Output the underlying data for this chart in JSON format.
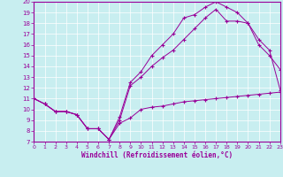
{
  "xlabel": "Windchill (Refroidissement éolien,°C)",
  "background_color": "#c8eef0",
  "line_color": "#990099",
  "grid_color": "#ffffff",
  "xlim": [
    0,
    23
  ],
  "ylim": [
    7,
    20
  ],
  "xticks": [
    0,
    1,
    2,
    3,
    4,
    5,
    6,
    7,
    8,
    9,
    10,
    11,
    12,
    13,
    14,
    15,
    16,
    17,
    18,
    19,
    20,
    21,
    22,
    23
  ],
  "yticks": [
    7,
    8,
    9,
    10,
    11,
    12,
    13,
    14,
    15,
    16,
    17,
    18,
    19,
    20
  ],
  "line1_x": [
    0,
    1,
    2,
    3,
    4,
    5,
    6,
    7,
    8,
    9,
    10,
    11,
    12,
    13,
    14,
    15,
    16,
    17,
    18,
    19,
    20,
    21,
    22,
    23
  ],
  "line1_y": [
    11.0,
    10.5,
    9.8,
    9.8,
    9.5,
    8.2,
    8.2,
    7.2,
    8.7,
    9.2,
    10.0,
    10.2,
    10.3,
    10.5,
    10.7,
    10.8,
    10.9,
    11.0,
    11.1,
    11.2,
    11.3,
    11.4,
    11.5,
    11.6
  ],
  "line2_x": [
    0,
    1,
    2,
    3,
    4,
    5,
    6,
    7,
    8,
    9,
    10,
    11,
    12,
    13,
    14,
    15,
    16,
    17,
    18,
    19,
    20,
    21,
    22,
    23
  ],
  "line2_y": [
    11.0,
    10.5,
    9.8,
    9.8,
    9.5,
    8.2,
    8.2,
    7.2,
    9.0,
    12.2,
    13.0,
    14.0,
    14.8,
    15.5,
    16.5,
    17.5,
    18.5,
    19.3,
    18.2,
    18.2,
    18.0,
    16.0,
    15.0,
    13.7
  ],
  "line3_x": [
    0,
    1,
    2,
    3,
    4,
    5,
    6,
    7,
    8,
    9,
    10,
    11,
    12,
    13,
    14,
    15,
    16,
    17,
    18,
    19,
    20,
    21,
    22,
    23
  ],
  "line3_y": [
    11.0,
    10.5,
    9.8,
    9.8,
    9.5,
    8.2,
    8.2,
    7.2,
    9.3,
    12.5,
    13.5,
    15.0,
    16.0,
    17.0,
    18.5,
    18.8,
    19.5,
    20.0,
    19.5,
    19.0,
    18.0,
    16.5,
    15.5,
    11.8
  ]
}
